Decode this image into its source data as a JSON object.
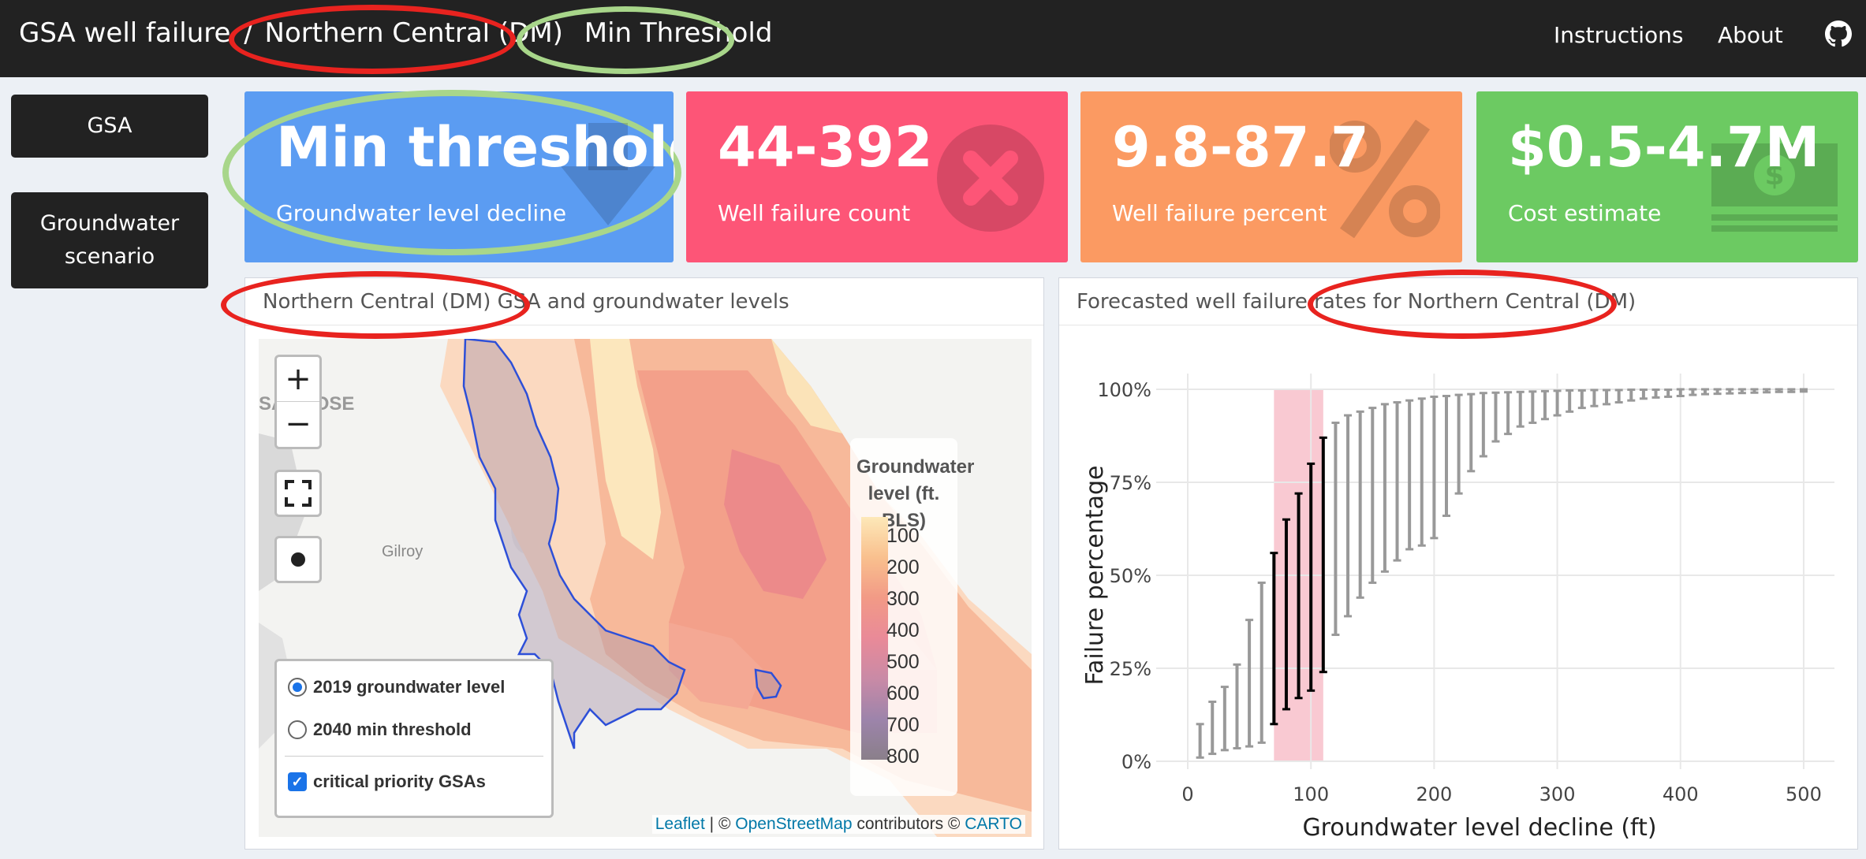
{
  "header": {
    "title_prefix": "GSA well failure",
    "separator": "/",
    "region": "Northern Central (DM)",
    "scenario": "Min Threshold",
    "nav": {
      "instructions": "Instructions",
      "about": "About"
    }
  },
  "sidebar": {
    "items": [
      {
        "label": "GSA"
      },
      {
        "label": "Groundwater scenario"
      }
    ]
  },
  "value_boxes": [
    {
      "value": "Min threshold",
      "subtitle": "Groundwater level decline",
      "color": "#5b9cf2",
      "icon": "arrow-down-icon"
    },
    {
      "value": "44-392",
      "subtitle": "Well failure count",
      "color": "#fd5577",
      "icon": "close-circle-icon"
    },
    {
      "value": "9.8-87.7",
      "subtitle": "Well failure percent",
      "color": "#fb9a62",
      "icon": "percent-icon"
    },
    {
      "value": "$0.5-4.7M",
      "subtitle": "Cost estimate",
      "color": "#6cca62",
      "icon": "money-bill-icon"
    }
  ],
  "map_panel": {
    "title": "Northern Central (DM) GSA and groundwater levels",
    "place_labels": {
      "san_jose": "SAN JOSE",
      "gilroy": "Gilroy"
    },
    "zoom_in": "+",
    "zoom_out": "−",
    "legend": {
      "title": "Groundwater level (ft. BLS)",
      "labels": [
        "100",
        "200",
        "300",
        "400",
        "500",
        "600",
        "700",
        "800"
      ]
    },
    "layers": {
      "radio_1": "2019 groundwater level",
      "radio_2": "2040 min threshold",
      "checkbox": "critical priority GSAs"
    },
    "attribution": {
      "leaflet": "Leaflet",
      "sep": "| ©",
      "osm": "OpenStreetMap",
      "contrib": "contributors ©",
      "carto": "CARTO"
    }
  },
  "chart_panel": {
    "title": "Forecasted well failure rates for Northern Central (DM)"
  },
  "chart_data": {
    "type": "errorbar",
    "xlabel": "Groundwater level decline (ft)",
    "ylabel": "Failure percentage",
    "xlim": [
      0,
      525
    ],
    "ylim": [
      0,
      100
    ],
    "x_ticks": [
      0,
      100,
      200,
      300,
      400,
      500
    ],
    "y_ticks": [
      "0%",
      "25%",
      "50%",
      "75%",
      "100%"
    ],
    "highlight_range": [
      70,
      110
    ],
    "x": [
      10,
      20,
      30,
      40,
      50,
      60,
      70,
      80,
      90,
      100,
      110,
      120,
      130,
      140,
      150,
      160,
      170,
      180,
      190,
      200,
      210,
      220,
      230,
      240,
      250,
      260,
      270,
      280,
      290,
      300,
      310,
      320,
      330,
      340,
      350,
      360,
      370,
      380,
      390,
      400,
      410,
      420,
      430,
      440,
      450,
      460,
      470,
      480,
      490,
      500
    ],
    "lower": [
      1,
      2,
      3,
      3.5,
      4,
      5,
      10,
      14,
      17,
      19,
      24,
      34,
      39,
      44,
      48,
      51,
      54,
      57,
      58,
      60,
      66,
      72,
      78,
      82,
      86,
      88,
      90,
      91,
      92,
      93,
      94,
      95,
      95.5,
      96,
      96.5,
      97,
      97.5,
      97.8,
      98,
      98.2,
      98.5,
      98.7,
      98.8,
      98.9,
      99,
      99.1,
      99.2,
      99.3,
      99.3,
      99.4
    ],
    "upper": [
      10,
      16,
      20,
      26,
      38,
      48,
      56,
      65,
      72,
      80,
      87,
      91,
      93,
      94,
      95,
      96,
      96.5,
      97,
      97.5,
      98,
      98.2,
      98.5,
      98.7,
      99,
      99.1,
      99.2,
      99.3,
      99.4,
      99.5,
      99.6,
      99.7,
      99.7,
      99.8,
      99.8,
      99.8,
      99.9,
      99.9,
      99.9,
      99.9,
      100,
      100,
      100,
      100,
      100,
      100,
      100,
      100,
      100,
      100,
      100
    ],
    "highlight_color": "#f9c9d2",
    "bar_color": "#999999",
    "highlight_bar_color": "#000000"
  },
  "annotations": {
    "red": "#e8231f",
    "green": "#a8d68a"
  }
}
